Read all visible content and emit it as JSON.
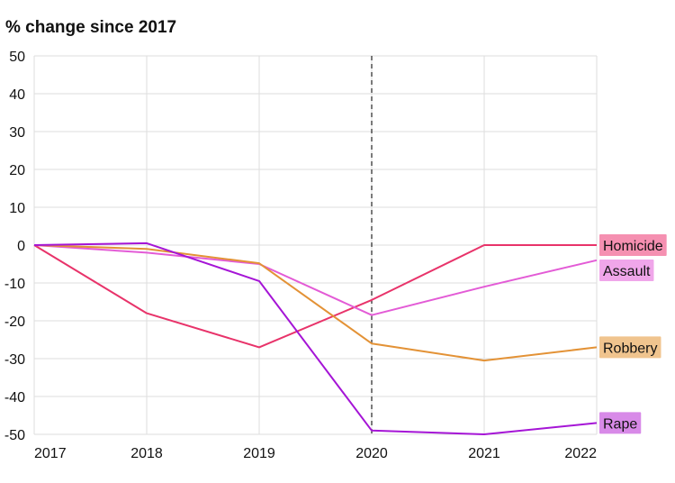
{
  "chart_data": {
    "type": "line",
    "title": "% change since 2017",
    "xlabel": "",
    "ylabel": "",
    "x": [
      "2017",
      "2018",
      "2019",
      "2020",
      "2021",
      "2022"
    ],
    "ylim": [
      -50,
      50
    ],
    "yticks": [
      50,
      40,
      30,
      20,
      10,
      0,
      -10,
      -20,
      -30,
      -40,
      -50
    ],
    "yticks_labels": [
      "50",
      "40",
      "30",
      "20",
      "10",
      "0",
      "-10",
      "-20",
      "-30",
      "-40",
      "-50"
    ],
    "grid": true,
    "reference_line": {
      "x": "2020",
      "style": "dashed"
    },
    "series": [
      {
        "name": "Homicide",
        "values": [
          0,
          -18,
          -27,
          -14.5,
          0,
          0
        ],
        "color": "#e8336a",
        "label_bg": "#f590b1"
      },
      {
        "name": "Assault",
        "values": [
          0,
          -2,
          -5,
          -18.5,
          -11,
          -4
        ],
        "color": "#e35bd6",
        "label_bg": "#f0a6ea"
      },
      {
        "name": "Robbery",
        "values": [
          0,
          -1,
          -4.8,
          -26,
          -30.5,
          -27
        ],
        "color": "#e39236",
        "label_bg": "#f0c48e"
      },
      {
        "name": "Rape",
        "values": [
          0,
          0.5,
          -9.5,
          -49,
          -50,
          -47
        ],
        "color": "#a515d6",
        "label_bg": "#d88ae8"
      }
    ]
  }
}
